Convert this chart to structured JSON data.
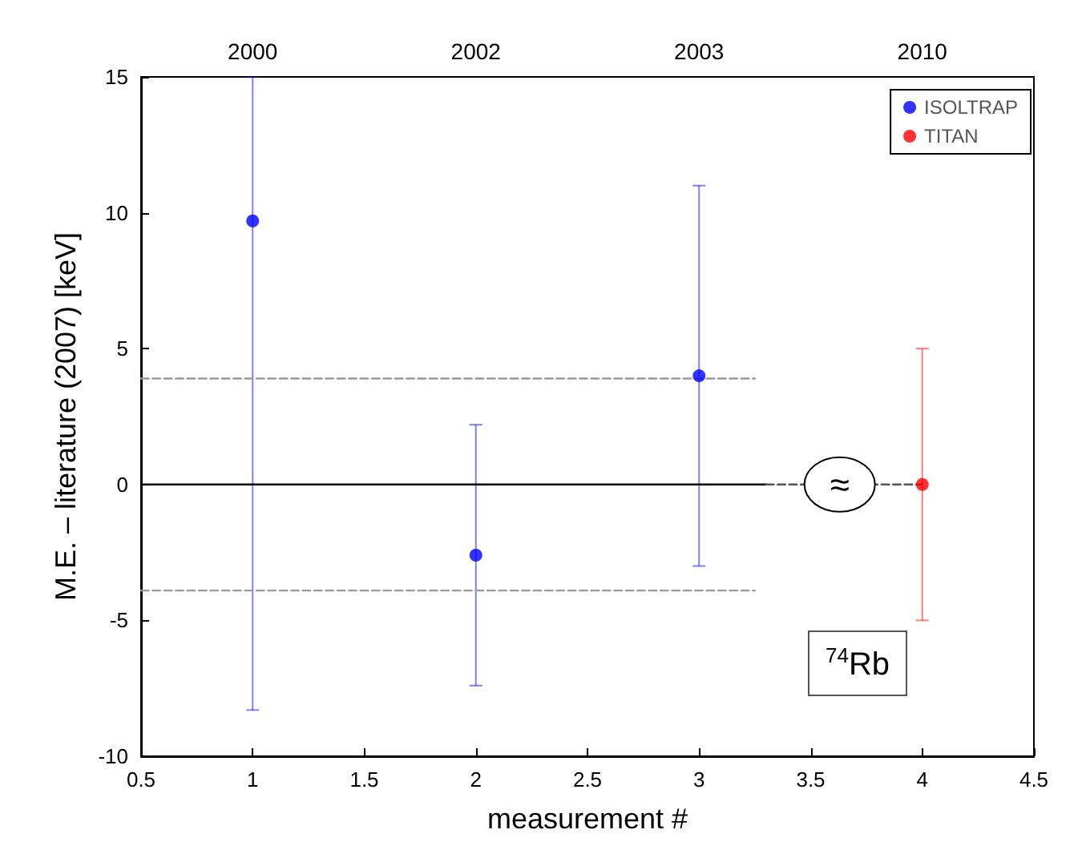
{
  "chart_data": {
    "type": "scatter",
    "xlabel": "measurement #",
    "ylabel": "M.E. – literature (2007) [keV]",
    "xlim": [
      0.5,
      4.5
    ],
    "xticks": [
      0.5,
      1,
      1.5,
      2,
      2.5,
      3,
      3.5,
      4,
      4.5
    ],
    "ylim": [
      -10,
      15
    ],
    "yticks": [
      -10,
      -5,
      0,
      5,
      10,
      15
    ],
    "grid": false,
    "legend": "top right",
    "marker": "circle",
    "series": [
      {
        "name": "ISOLTRAP",
        "color": "#0000ff",
        "x": [
          1,
          2,
          3
        ],
        "values": [
          9.7,
          -2.6,
          4.0
        ],
        "errors": [
          [
            -8.3,
            15
          ],
          [
            -7.4,
            2.2
          ],
          [
            -3.0,
            11.0
          ]
        ]
      },
      {
        "name": "TITAN",
        "color": "#ff0000",
        "x": [
          4
        ],
        "values": [
          0
        ],
        "errors": [
          [
            -5,
            5
          ]
        ]
      },
      {
        "type": "line",
        "color": "#999999",
        "x": [
          0.5,
          3.25
        ],
        "values": [
          3.9,
          3.9
        ],
        "line_style": "dashed",
        "marker": "none"
      },
      {
        "type": "line",
        "color": "#999999",
        "x": [
          0.5,
          3.25
        ],
        "values": [
          -3.9,
          -3.9
        ],
        "line_style": "dashed",
        "marker": "none"
      },
      {
        "type": "line",
        "color": "#000000",
        "x": [
          0.5,
          3.3
        ],
        "values": [
          0,
          0
        ],
        "line_style": "solid",
        "marker": "none"
      },
      {
        "type": "line",
        "color": "#555555",
        "x": [
          3.3,
          4
        ],
        "values": [
          0,
          0
        ],
        "line_style": "dashed",
        "marker": "none"
      }
    ],
    "annotations": [
      {
        "text": "≈",
        "x": 3.63,
        "y": 0
      },
      "$^{74}$Rb",
      "2000",
      "2002",
      "2003",
      "2010"
    ]
  }
}
